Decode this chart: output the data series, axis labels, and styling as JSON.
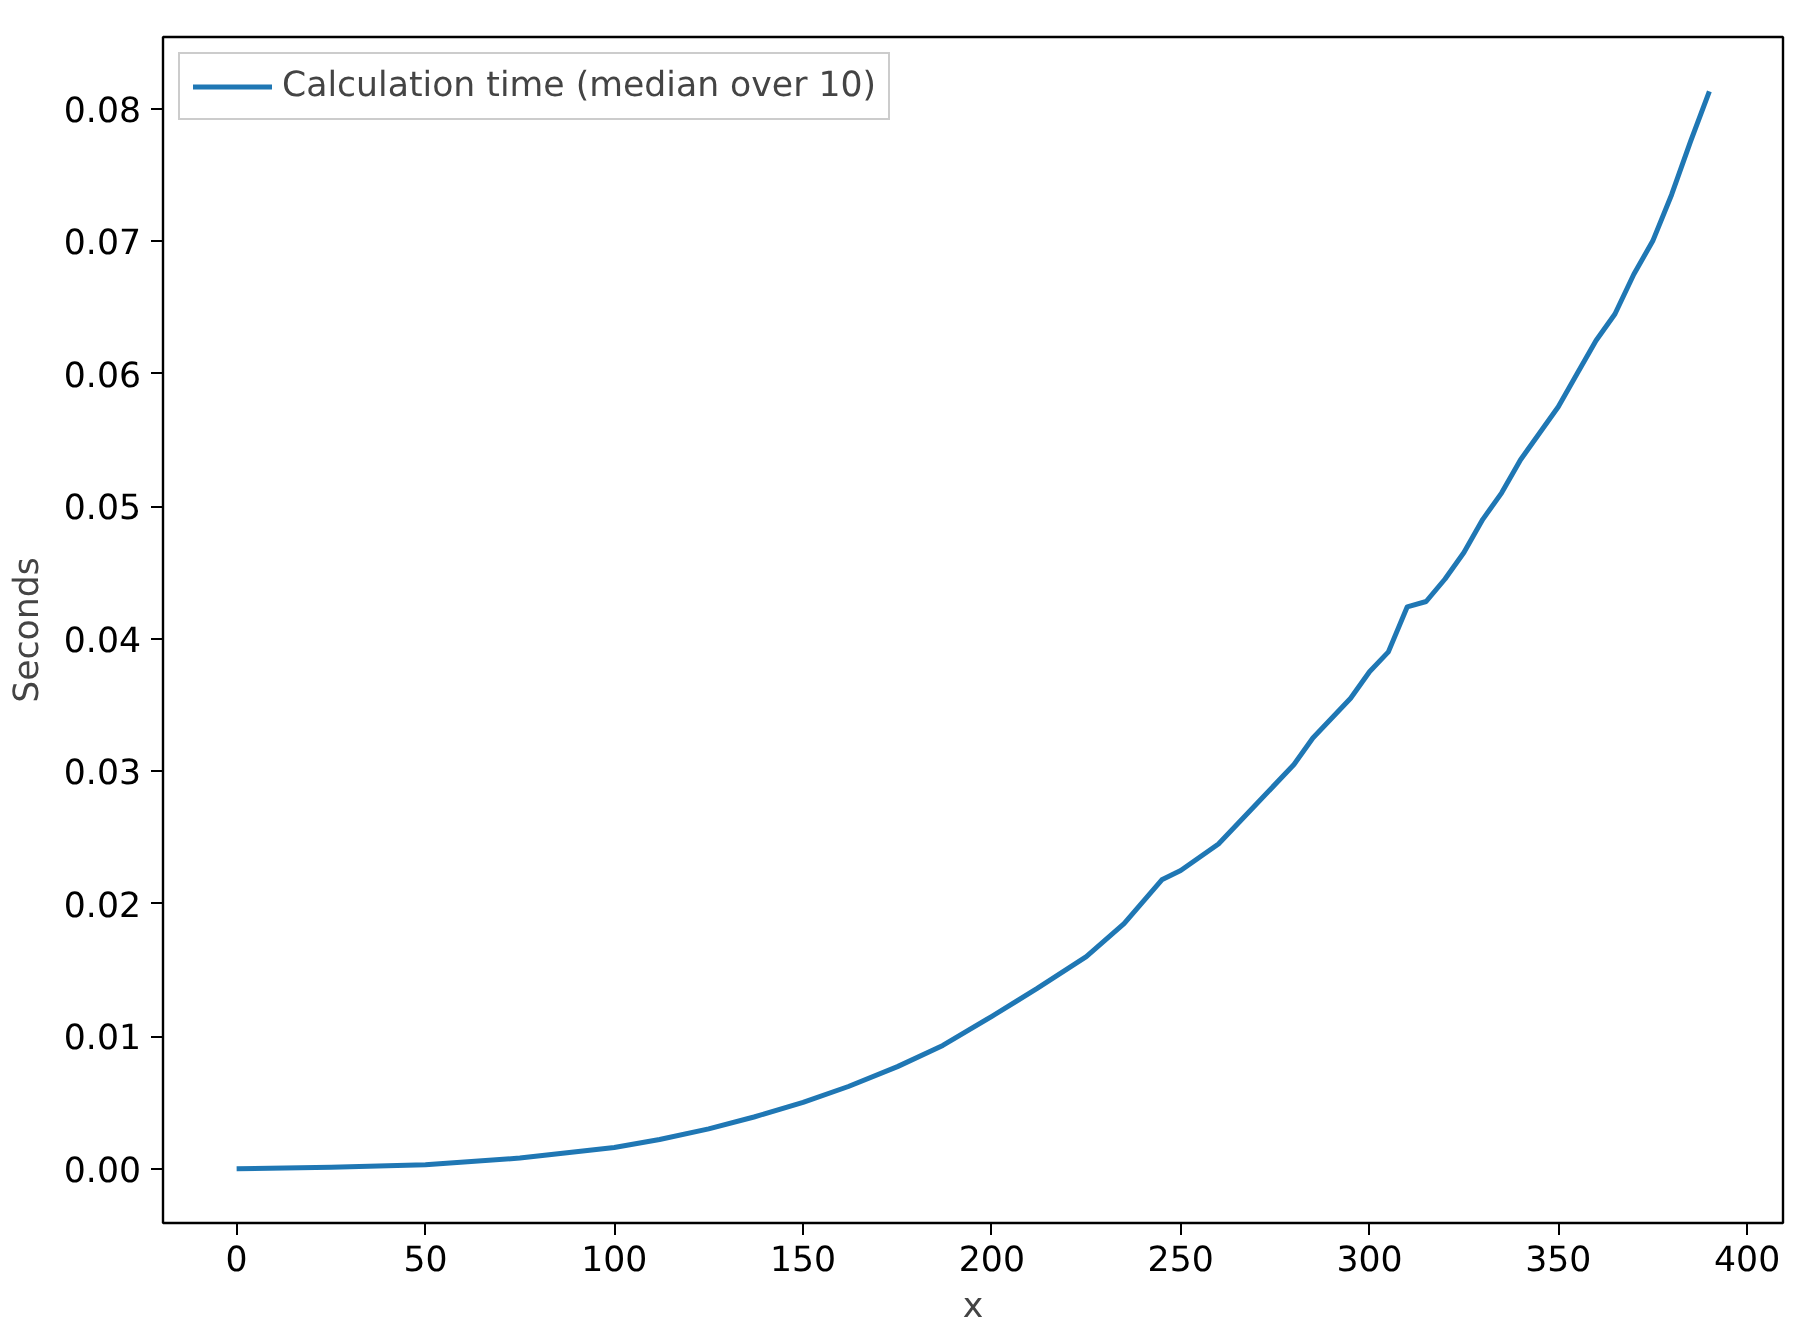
{
  "chart_data": {
    "type": "line",
    "xlabel": "x",
    "ylabel": "Seconds",
    "x": [
      0,
      25,
      50,
      75,
      100,
      112,
      125,
      137,
      150,
      162,
      175,
      187,
      200,
      212,
      225,
      235,
      245,
      250,
      260,
      270,
      280,
      285,
      295,
      300,
      305,
      310,
      315,
      320,
      325,
      330,
      335,
      340,
      345,
      350,
      355,
      360,
      365,
      370,
      375,
      380,
      385,
      390
    ],
    "series": [
      {
        "name": "Calculation time (median over 10)",
        "color": "#1f77b4",
        "values": [
          0,
          0.0001,
          0.0003,
          0.0008,
          0.0016,
          0.0022,
          0.003,
          0.0039,
          0.005,
          0.0062,
          0.0077,
          0.0093,
          0.0115,
          0.0136,
          0.016,
          0.0185,
          0.0218,
          0.0225,
          0.0245,
          0.0275,
          0.0305,
          0.0325,
          0.0355,
          0.0375,
          0.039,
          0.0424,
          0.0428,
          0.0445,
          0.0465,
          0.049,
          0.051,
          0.0535,
          0.0555,
          0.0575,
          0.06,
          0.0625,
          0.0645,
          0.0675,
          0.07,
          0.0735,
          0.0775,
          0.0813
        ]
      }
    ],
    "xlim": [
      -19.5,
      409.5
    ],
    "ylim": [
      -0.0041,
      0.0854
    ],
    "xticks": [
      0,
      50,
      100,
      150,
      200,
      250,
      300,
      350,
      400
    ],
    "yticks": [
      {
        "value": 0,
        "label": "0.00"
      },
      {
        "value": 0.01,
        "label": "0.01"
      },
      {
        "value": 0.02,
        "label": "0.02"
      },
      {
        "value": 0.03,
        "label": "0.03"
      },
      {
        "value": 0.04,
        "label": "0.04"
      },
      {
        "value": 0.05,
        "label": "0.05"
      },
      {
        "value": 0.06,
        "label": "0.06"
      },
      {
        "value": 0.07,
        "label": "0.07"
      },
      {
        "value": 0.08,
        "label": "0.08"
      }
    ],
    "legend": "top left",
    "grid": false
  }
}
